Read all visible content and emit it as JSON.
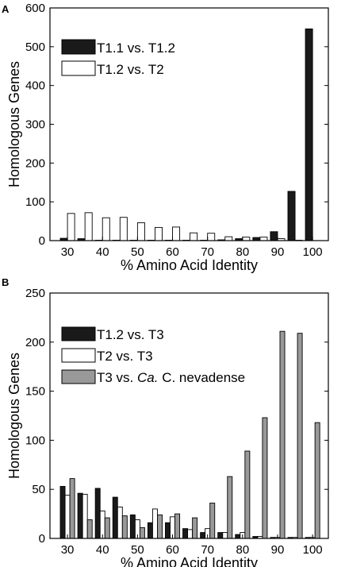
{
  "colors": {
    "black": "#1a1a1a",
    "white": "#ffffff",
    "gray": "#999999",
    "axis": "#000000"
  },
  "chart_data": [
    {
      "panel": "A",
      "type": "bar",
      "xlabel": "% Amino Acid Identity",
      "ylabel": "Homologous Genes",
      "categories": [
        30,
        35,
        40,
        45,
        50,
        55,
        60,
        65,
        70,
        75,
        80,
        85,
        90,
        95,
        100
      ],
      "xticks": [
        "30",
        "40",
        "50",
        "60",
        "70",
        "80",
        "90",
        "100"
      ],
      "yticks": [
        "0",
        "100",
        "200",
        "300",
        "400",
        "500",
        "600"
      ],
      "ylim": [
        0,
        600
      ],
      "series": [
        {
          "name": "T1.1 vs. T1.2",
          "fill": "#1a1a1a",
          "values": [
            6,
            5,
            1,
            1,
            1,
            1,
            1,
            1,
            1,
            2,
            5,
            8,
            23,
            127,
            546
          ]
        },
        {
          "name": "T1.2 vs. T2",
          "fill": "#ffffff",
          "values": [
            70,
            72,
            59,
            60,
            46,
            34,
            35,
            20,
            19,
            10,
            9,
            9,
            5,
            1,
            0
          ]
        }
      ],
      "legend": "top-left"
    },
    {
      "panel": "B",
      "type": "bar",
      "xlabel": "% Amino Acid Identity",
      "ylabel": "Homologous Genes",
      "categories": [
        30,
        35,
        40,
        45,
        50,
        55,
        60,
        65,
        70,
        75,
        80,
        85,
        90,
        95,
        100
      ],
      "xticks": [
        "30",
        "40",
        "50",
        "60",
        "70",
        "80",
        "90",
        "100"
      ],
      "yticks": [
        "0",
        "50",
        "100",
        "150",
        "200",
        "250"
      ],
      "ylim": [
        0,
        250
      ],
      "series": [
        {
          "name": "T1.2 vs. T3",
          "fill": "#1a1a1a",
          "values": [
            53,
            46,
            51,
            42,
            24,
            16,
            16,
            10,
            6,
            6,
            4,
            2,
            1,
            1,
            1
          ]
        },
        {
          "name": "T2 vs. T3",
          "fill": "#ffffff",
          "values": [
            44,
            45,
            28,
            32,
            19,
            30,
            22,
            9,
            10,
            6,
            6,
            2,
            1,
            1,
            1
          ]
        },
        {
          "name": "T3 vs. Ca. C. nevadense",
          "name_prefix": "T3 vs. ",
          "name_italic": "Ca.",
          "name_suffix": " C. nevadense",
          "fill": "#999999",
          "values": [
            61,
            19,
            21,
            23,
            11,
            24,
            25,
            21,
            36,
            63,
            89,
            123,
            211,
            209,
            118
          ]
        }
      ],
      "legend": "top-left"
    }
  ]
}
